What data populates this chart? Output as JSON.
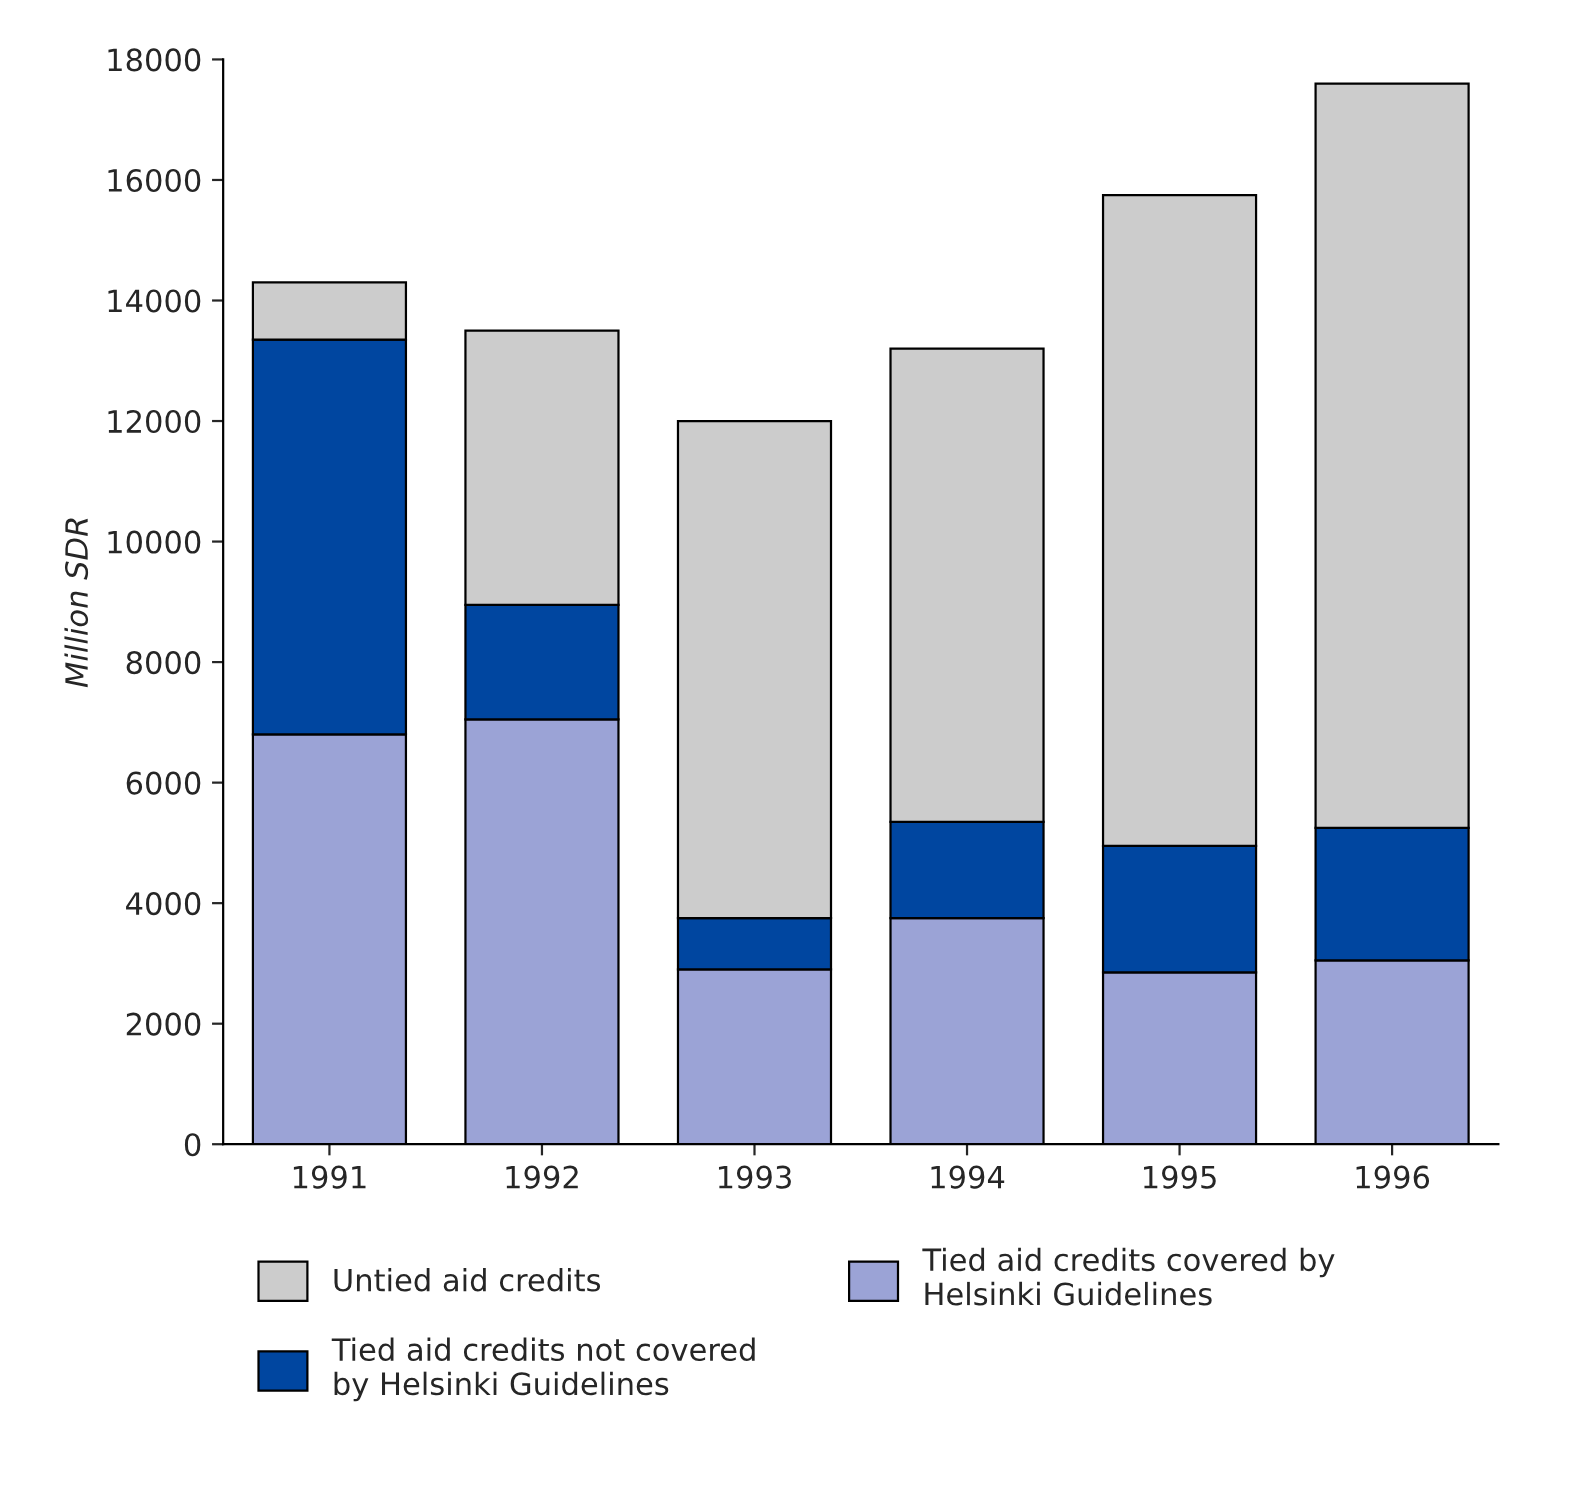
{
  "chart_data": {
    "type": "bar",
    "stacked": true,
    "ylabel": "Million SDR",
    "categories": [
      "1991",
      "1992",
      "1993",
      "1994",
      "1995",
      "1996"
    ],
    "series": [
      {
        "name": "Tied aid credits covered by Helsinki Guidelines",
        "color": "#9ba3d6",
        "values": [
          6800,
          7050,
          2900,
          3750,
          2850,
          3050
        ]
      },
      {
        "name": "Tied aid credits not covered by Helsinki Guidelines",
        "color": "#0046a0",
        "values": [
          6550,
          1900,
          850,
          1600,
          2100,
          2200
        ]
      },
      {
        "name": "Untied aid credits",
        "color": "#cccccc",
        "values": [
          950,
          4550,
          8250,
          7850,
          10800,
          12350
        ]
      }
    ],
    "ylim": [
      0,
      18000
    ],
    "yticks": [
      0,
      2000,
      4000,
      6000,
      8000,
      10000,
      12000,
      14000,
      16000,
      18000
    ],
    "grid": false,
    "legend": "bottom"
  }
}
